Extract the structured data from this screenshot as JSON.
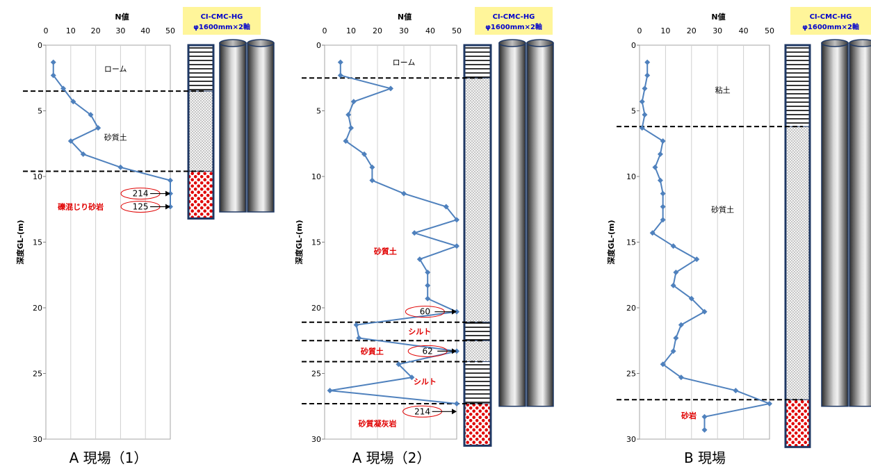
{
  "colors": {
    "series": "#4f81bd",
    "marker": "#4f81bd",
    "red_text": "#e00000",
    "legend_bg": "#fff59a",
    "legend_text": "#0000cc",
    "column_border": "#1f3864",
    "gravel": "#e00000"
  },
  "chart_data": [
    {
      "type": "line",
      "caption": "A 現場（1）",
      "xlabel": "N値",
      "ylabel": "深度GL-(m)",
      "xlim": [
        0,
        50
      ],
      "ylim": [
        0,
        30
      ],
      "x_ticks": [
        "0",
        "10",
        "20",
        "30",
        "40",
        "50"
      ],
      "y_ticks": [
        "0",
        "5",
        "10",
        "15",
        "20",
        "25",
        "30"
      ],
      "y_axis_reversed": true,
      "grid": "vertical",
      "legend": "CI-CMC-HG\nφ1600mm×2軸",
      "series": [
        {
          "depth": [
            1.3,
            2.3,
            3.3,
            4.3,
            5.3,
            6.3,
            7.3,
            8.3,
            9.3,
            10.3,
            11.3,
            12.3
          ],
          "n_value": [
            3,
            3,
            7,
            11,
            18,
            21,
            10,
            15,
            30,
            50,
            50,
            50
          ]
        }
      ],
      "boundaries": [
        3.5,
        9.6
      ],
      "layers": [
        {
          "name": "ローム",
          "type": "clay",
          "top": 0.0,
          "bottom": 3.5
        },
        {
          "name": "砂質土",
          "type": "sand",
          "top": 3.5,
          "bottom": 9.6
        },
        {
          "name": "礫混じり砂岩",
          "type": "gravel",
          "top": 9.6,
          "bottom": 13.2
        }
      ],
      "layer_labels": [
        {
          "text": "ローム",
          "depth": 1.8,
          "n": 28,
          "red": false
        },
        {
          "text": "砂質土",
          "depth": 7.0,
          "n": 28,
          "red": false
        },
        {
          "text": "礫混じり砂岩",
          "depth": 12.3,
          "n": 14,
          "red": true
        }
      ],
      "callouts": [
        {
          "text": "214",
          "depth": 11.3,
          "n": 38
        },
        {
          "text": "125",
          "depth": 12.3,
          "n": 38
        }
      ],
      "pile_bottom": 12.7
    },
    {
      "type": "line",
      "caption": "A 現場（2）",
      "xlabel": "N値",
      "ylabel": "深度GL-(m)",
      "xlim": [
        0,
        50
      ],
      "ylim": [
        0,
        30
      ],
      "x_ticks": [
        "0",
        "10",
        "20",
        "30",
        "40",
        "50"
      ],
      "y_ticks": [
        "0",
        "5",
        "10",
        "15",
        "20",
        "25",
        "30"
      ],
      "y_axis_reversed": true,
      "grid": "vertical",
      "legend": "CI-CMC-HG\nφ1600mm×2軸",
      "series": [
        {
          "depth": [
            1.3,
            2.3,
            3.3,
            4.3,
            5.3,
            6.3,
            7.3,
            8.3,
            9.3,
            10.3,
            11.3,
            12.3,
            13.3,
            14.3,
            15.3,
            16.3,
            17.3,
            18.3,
            19.3,
            20.3,
            21.3,
            22.3,
            23.3,
            24.3,
            25.3,
            26.3,
            27.3
          ],
          "n_value": [
            6,
            6,
            25,
            11,
            9,
            10,
            8,
            15,
            18,
            18,
            30,
            46,
            50,
            34,
            50,
            36,
            39,
            39,
            39,
            50,
            12,
            13,
            50,
            28,
            33,
            2,
            50
          ]
        }
      ],
      "boundaries": [
        2.5,
        21.1,
        22.5,
        24.1,
        27.3
      ],
      "layers": [
        {
          "name": "ローム",
          "type": "clay",
          "top": 0.0,
          "bottom": 2.5
        },
        {
          "name": "砂質土",
          "type": "sand",
          "top": 2.5,
          "bottom": 21.1
        },
        {
          "name": "シルト",
          "type": "clay",
          "top": 21.1,
          "bottom": 22.5
        },
        {
          "name": "砂質土",
          "type": "sand",
          "top": 22.5,
          "bottom": 24.1
        },
        {
          "name": "シルト",
          "type": "clay",
          "top": 24.1,
          "bottom": 27.3
        },
        {
          "name": "砂質凝灰岩",
          "type": "gravel",
          "top": 27.3,
          "bottom": 30.5
        }
      ],
      "layer_labels": [
        {
          "text": "ローム",
          "depth": 1.3,
          "n": 30,
          "red": false
        },
        {
          "text": "砂質土",
          "depth": 15.7,
          "n": 23,
          "red": true
        },
        {
          "text": "シルト",
          "depth": 21.8,
          "n": 36,
          "red": true
        },
        {
          "text": "砂質土",
          "depth": 23.3,
          "n": 18,
          "red": true
        },
        {
          "text": "シルト",
          "depth": 25.6,
          "n": 38,
          "red": true
        },
        {
          "text": "砂質凝灰岩",
          "depth": 28.8,
          "n": 20,
          "red": true
        }
      ],
      "callouts": [
        {
          "text": "60",
          "depth": 20.3,
          "n": 38
        },
        {
          "text": "62",
          "depth": 23.3,
          "n": 39
        },
        {
          "text": "214",
          "depth": 27.9,
          "n": 37
        }
      ],
      "pile_bottom": 27.5
    },
    {
      "type": "line",
      "caption": "B 現場",
      "xlabel": "N値",
      "ylabel": "深度GL-(m)",
      "xlim": [
        0,
        50
      ],
      "ylim": [
        0,
        30
      ],
      "x_ticks": [
        "0",
        "10",
        "20",
        "30",
        "40",
        "50"
      ],
      "y_ticks": [
        "0",
        "5",
        "10",
        "15",
        "20",
        "25",
        "30"
      ],
      "y_axis_reversed": true,
      "grid": "vertical",
      "legend": "CI-CMC-HG\nφ1600mm×2軸",
      "series": [
        {
          "depth": [
            1.3,
            2.3,
            3.3,
            4.3,
            5.3,
            6.3,
            7.3,
            8.3,
            9.3,
            10.3,
            11.3,
            12.3,
            13.3,
            14.3,
            15.3,
            16.3,
            17.3,
            18.3,
            19.3,
            20.3,
            21.3,
            22.3,
            23.3,
            24.3,
            25.3,
            26.3,
            27.3,
            28.3,
            29.3
          ],
          "n_value": [
            3,
            3,
            2,
            1,
            2,
            1,
            9,
            8,
            6,
            8,
            9,
            9,
            9,
            5,
            13,
            22,
            14,
            13,
            20,
            25,
            16,
            14,
            13,
            9,
            16,
            37,
            50,
            25,
            25
          ]
        }
      ],
      "boundaries": [
        6.2,
        27.0
      ],
      "layers": [
        {
          "name": "粘土",
          "type": "clay",
          "top": 0.0,
          "bottom": 6.2
        },
        {
          "name": "砂質土",
          "type": "sand",
          "top": 6.2,
          "bottom": 27.0
        },
        {
          "name": "砂岩",
          "type": "gravel",
          "top": 27.0,
          "bottom": 30.6
        }
      ],
      "layer_labels": [
        {
          "text": "粘土",
          "depth": 3.4,
          "n": 32,
          "red": false
        },
        {
          "text": "砂質土",
          "depth": 12.5,
          "n": 32,
          "red": false
        },
        {
          "text": "砂岩",
          "depth": 28.2,
          "n": 19,
          "red": true
        }
      ],
      "callouts": [],
      "pile_bottom": 27.5
    }
  ]
}
